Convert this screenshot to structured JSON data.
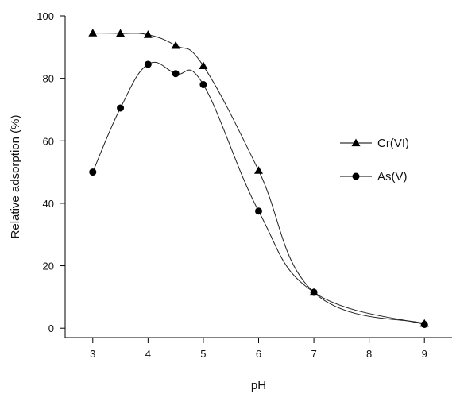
{
  "chart_data": {
    "type": "line",
    "title": "",
    "xlabel": "pH",
    "ylabel": "Relative adsorption (%)",
    "xlim": [
      2.5,
      9.5
    ],
    "ylim": [
      -3,
      100
    ],
    "x_ticks": [
      3,
      4,
      5,
      6,
      7,
      8,
      9
    ],
    "y_ticks": [
      0,
      20,
      40,
      60,
      80,
      100
    ],
    "grid": false,
    "legend_position": "right",
    "series": [
      {
        "name": "Cr(VI)",
        "marker": "triangle",
        "color": "#000000",
        "points": [
          {
            "x": 3,
            "y": 94.5
          },
          {
            "x": 3.5,
            "y": 94.4
          },
          {
            "x": 4,
            "y": 94.0
          },
          {
            "x": 4.5,
            "y": 90.5
          },
          {
            "x": 5,
            "y": 84.0
          },
          {
            "x": 6,
            "y": 50.5
          },
          {
            "x": 7,
            "y": 11.5
          },
          {
            "x": 9,
            "y": 1.5
          }
        ]
      },
      {
        "name": "As(V)",
        "marker": "circle",
        "color": "#000000",
        "points": [
          {
            "x": 3,
            "y": 50.0
          },
          {
            "x": 3.5,
            "y": 70.5
          },
          {
            "x": 4,
            "y": 84.5
          },
          {
            "x": 4.5,
            "y": 81.5
          },
          {
            "x": 5,
            "y": 78.0
          },
          {
            "x": 6,
            "y": 37.5
          },
          {
            "x": 7,
            "y": 11.5
          },
          {
            "x": 9,
            "y": 1.2
          }
        ]
      }
    ]
  }
}
